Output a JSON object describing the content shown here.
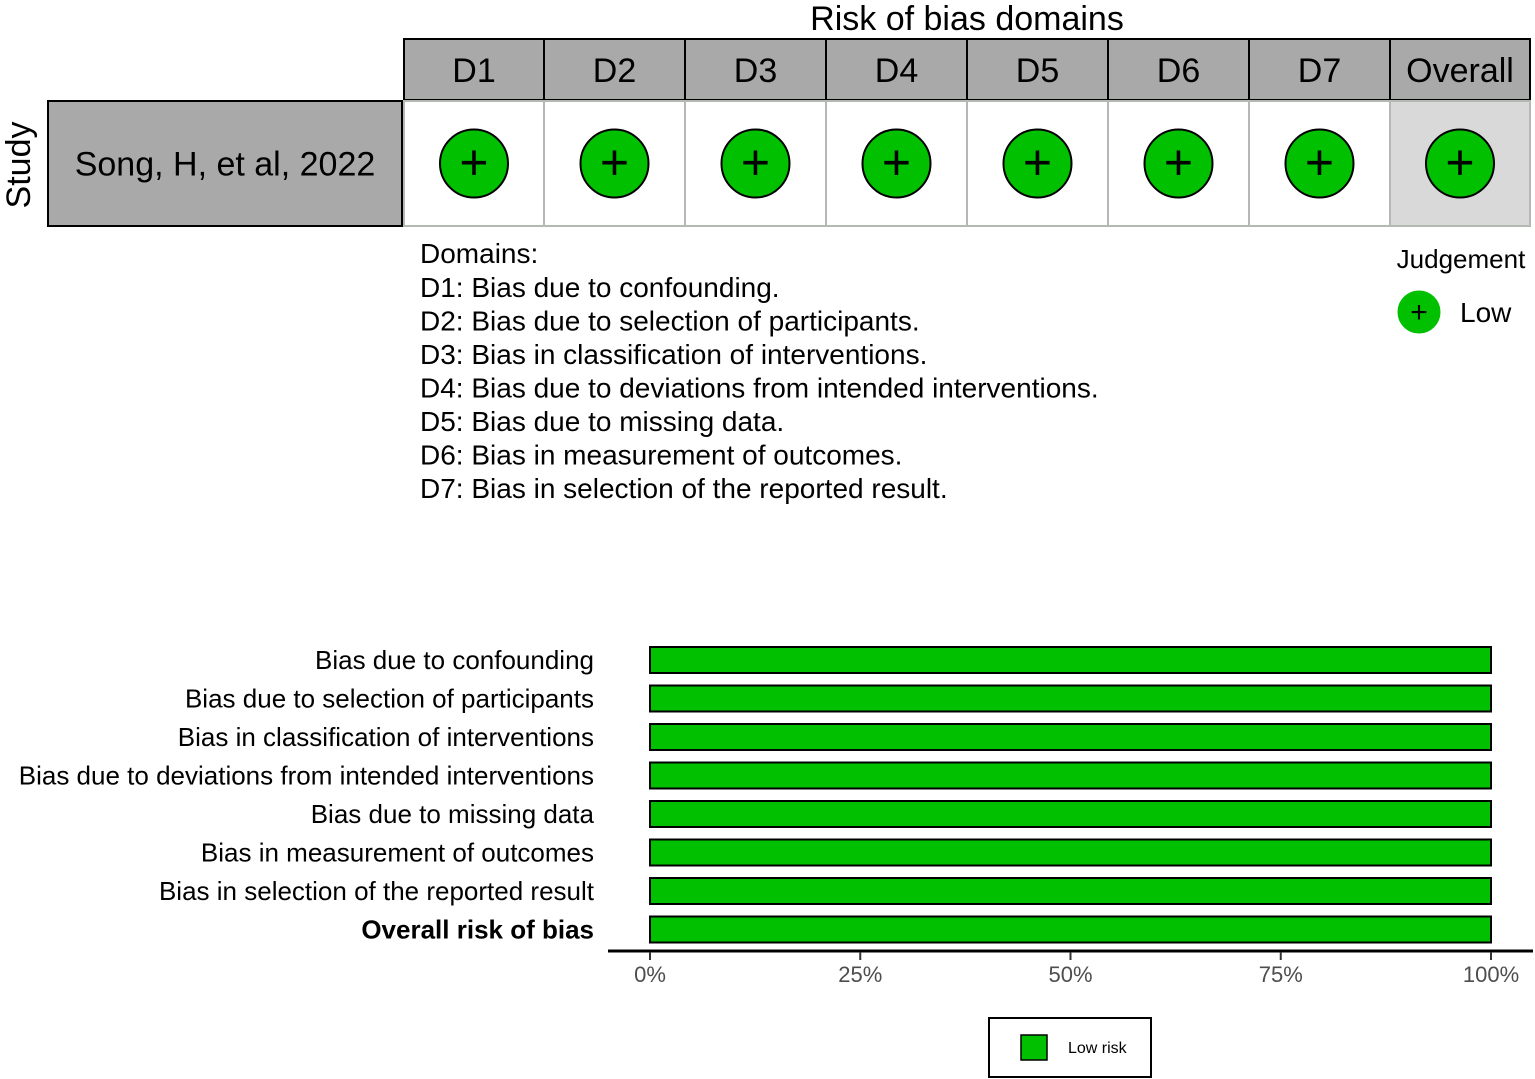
{
  "traffic_light": {
    "title": "Risk of bias domains",
    "y_axis_label": "Study",
    "domains": [
      "D1",
      "D2",
      "D3",
      "D4",
      "D5",
      "D6",
      "D7",
      "Overall"
    ],
    "studies": [
      {
        "name": "Song, H, et al, 2022",
        "judgements": [
          "+",
          "+",
          "+",
          "+",
          "+",
          "+",
          "+",
          "+"
        ]
      }
    ],
    "domains_heading": "Domains:",
    "domain_descriptions": [
      "D1: Bias due to confounding.",
      "D2: Bias due to selection of participants.",
      "D3: Bias in classification of interventions.",
      "D4: Bias due to deviations from intended interventions.",
      "D5: Bias due to missing data.",
      "D6: Bias in measurement of outcomes.",
      "D7: Bias in selection of the reported result."
    ],
    "legend_title": "Judgement",
    "legend_items": [
      {
        "symbol": "+",
        "label": "Low",
        "color": "#00c000"
      }
    ]
  },
  "chart_data": [
    {
      "type": "table",
      "title": "Risk of bias domains",
      "row_label": "Study",
      "columns": [
        "D1",
        "D2",
        "D3",
        "D4",
        "D5",
        "D6",
        "D7",
        "Overall"
      ],
      "rows": [
        {
          "study": "Song, H, et al, 2022",
          "values": [
            "Low",
            "Low",
            "Low",
            "Low",
            "Low",
            "Low",
            "Low",
            "Low"
          ]
        }
      ]
    },
    {
      "type": "bar",
      "orientation": "horizontal",
      "stacked": true,
      "categories": [
        "Bias due to confounding",
        "Bias due to selection of participants",
        "Bias in classification of interventions",
        "Bias due to deviations from intended interventions",
        "Bias due to missing data",
        "Bias in measurement of outcomes",
        "Bias in selection of the reported result",
        "Overall risk of bias"
      ],
      "bold_category": "Overall risk of bias",
      "series": [
        {
          "name": "Low risk",
          "values": [
            100,
            100,
            100,
            100,
            100,
            100,
            100,
            100
          ]
        }
      ],
      "xlim": [
        0,
        100
      ],
      "xticks": [
        0,
        25,
        50,
        75,
        100
      ],
      "xtick_labels": [
        "0%",
        "25%",
        "50%",
        "75%",
        "100%"
      ],
      "legend_position": "bottom"
    }
  ],
  "colors": {
    "low": "#00c000",
    "header_fill": "#a9a9a9",
    "study_fill": "#a9a9a9",
    "overall_cell": "#d9d9d9",
    "cell_border": "#b4b9b4"
  }
}
